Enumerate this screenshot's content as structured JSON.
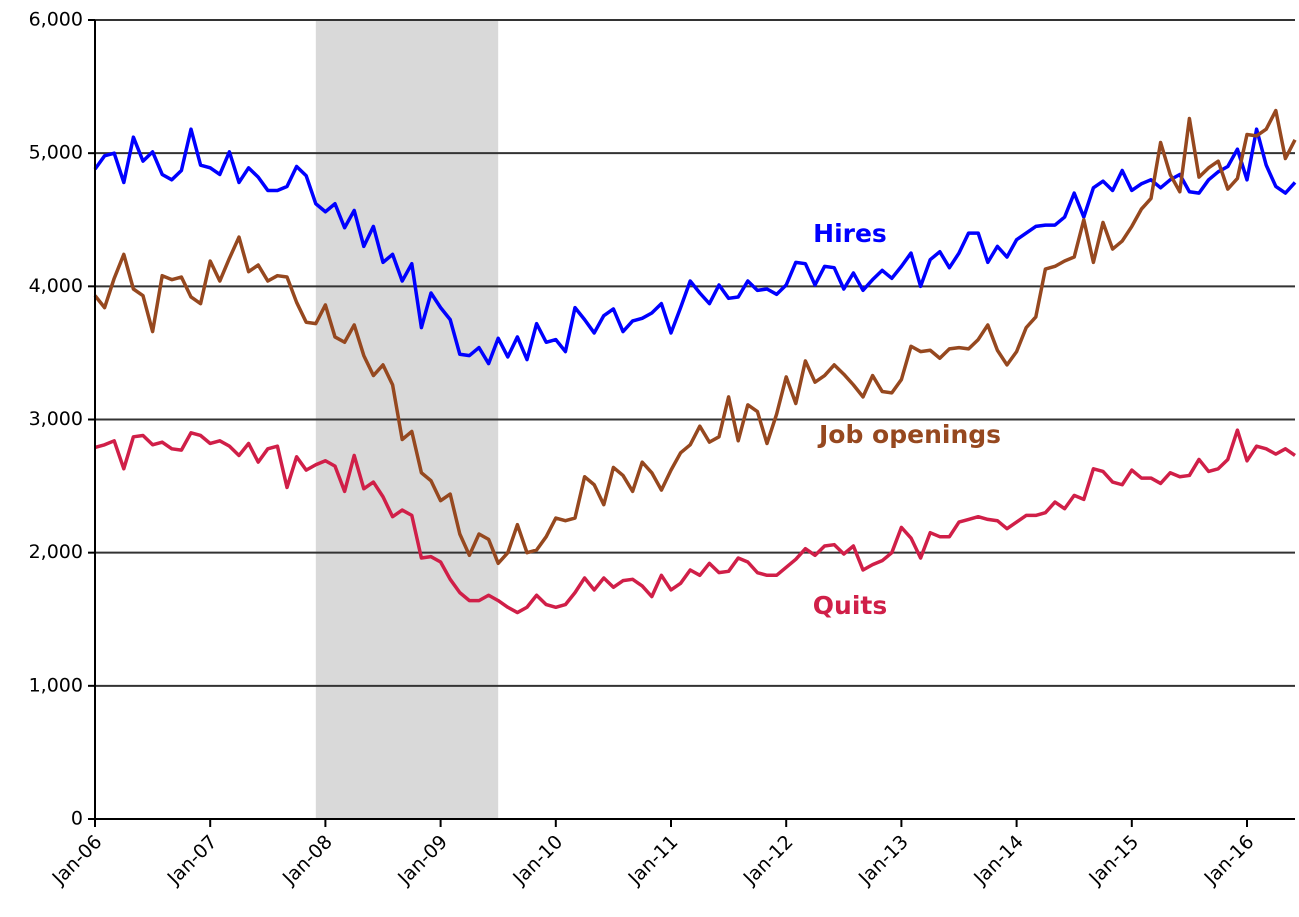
{
  "chart_data": {
    "type": "line",
    "categories": [
      "Jan-06",
      null,
      null,
      null,
      null,
      null,
      null,
      null,
      null,
      null,
      null,
      null,
      "Jan-07",
      null,
      null,
      null,
      null,
      null,
      null,
      null,
      null,
      null,
      null,
      null,
      "Jan-08",
      null,
      null,
      null,
      null,
      null,
      null,
      null,
      null,
      null,
      null,
      null,
      "Jan-09",
      null,
      null,
      null,
      null,
      null,
      null,
      null,
      null,
      null,
      null,
      null,
      "Jan-10",
      null,
      null,
      null,
      null,
      null,
      null,
      null,
      null,
      null,
      null,
      null,
      "Jan-11",
      null,
      null,
      null,
      null,
      null,
      null,
      null,
      null,
      null,
      null,
      null,
      "Jan-12",
      null,
      null,
      null,
      null,
      null,
      null,
      null,
      null,
      null,
      null,
      null,
      "Jan-13",
      null,
      null,
      null,
      null,
      null,
      null,
      null,
      null,
      null,
      null,
      null,
      "Jan-14",
      null,
      null,
      null,
      null,
      null,
      null,
      null,
      null,
      null,
      null,
      null,
      "Jan-15",
      null,
      null,
      null,
      null,
      null,
      null,
      null,
      null,
      null,
      null,
      null,
      "Jan-16",
      null,
      null,
      null,
      null,
      null
    ],
    "series": [
      {
        "name": "Hires",
        "color": "#0000ff",
        "values": [
          4880,
          4980,
          5000,
          4780,
          5120,
          4940,
          5010,
          4840,
          4800,
          4870,
          5180,
          4910,
          4890,
          4840,
          5010,
          4780,
          4890,
          4820,
          4720,
          4720,
          4750,
          4900,
          4830,
          4620,
          4560,
          4620,
          4440,
          4570,
          4300,
          4450,
          4180,
          4240,
          4040,
          4170,
          3690,
          3950,
          3840,
          3750,
          3490,
          3480,
          3540,
          3420,
          3610,
          3470,
          3620,
          3450,
          3720,
          3580,
          3600,
          3510,
          3840,
          3750,
          3650,
          3780,
          3830,
          3660,
          3740,
          3760,
          3800,
          3870,
          3650,
          3840,
          4040,
          3950,
          3870,
          4010,
          3910,
          3920,
          4040,
          3970,
          3980,
          3940,
          4010,
          4180,
          4170,
          4010,
          4150,
          4140,
          3980,
          4100,
          3970,
          4050,
          4120,
          4060,
          4150,
          4250,
          4000,
          4200,
          4260,
          4140,
          4250,
          4400,
          4400,
          4180,
          4300,
          4220,
          4350,
          4400,
          4450,
          4460,
          4460,
          4520,
          4700,
          4520,
          4740,
          4790,
          4720,
          4870,
          4720,
          4770,
          4800,
          4740,
          4800,
          4840,
          4710,
          4700,
          4800,
          4860,
          4900,
          5030,
          4800,
          5180,
          4910,
          4750,
          4700,
          4780
        ]
      },
      {
        "name": "Job openings",
        "color": "#96481f",
        "values": [
          3930,
          3840,
          4060,
          4240,
          3980,
          3930,
          3660,
          4080,
          4050,
          4070,
          3920,
          3870,
          4190,
          4040,
          4210,
          4370,
          4110,
          4160,
          4040,
          4080,
          4070,
          3880,
          3730,
          3720,
          3860,
          3620,
          3580,
          3710,
          3480,
          3330,
          3410,
          3260,
          2850,
          2910,
          2600,
          2540,
          2390,
          2440,
          2140,
          1980,
          2140,
          2100,
          1920,
          2000,
          2210,
          2000,
          2020,
          2120,
          2260,
          2240,
          2260,
          2570,
          2510,
          2360,
          2640,
          2580,
          2460,
          2680,
          2600,
          2470,
          2620,
          2750,
          2810,
          2950,
          2830,
          2870,
          3170,
          2840,
          3110,
          3060,
          2820,
          3040,
          3320,
          3120,
          3440,
          3280,
          3330,
          3410,
          3340,
          3260,
          3170,
          3330,
          3210,
          3200,
          3300,
          3550,
          3510,
          3520,
          3460,
          3530,
          3540,
          3530,
          3600,
          3710,
          3520,
          3410,
          3510,
          3690,
          3770,
          4130,
          4150,
          4190,
          4220,
          4500,
          4180,
          4480,
          4280,
          4340,
          4450,
          4580,
          4660,
          5080,
          4840,
          4710,
          5260,
          4820,
          4890,
          4940,
          4730,
          4810,
          5140,
          5130,
          5180,
          5320,
          4960,
          5100
        ]
      },
      {
        "name": "Quits",
        "color": "#d01f48",
        "values": [
          2790,
          2810,
          2840,
          2630,
          2870,
          2880,
          2810,
          2830,
          2780,
          2770,
          2900,
          2880,
          2820,
          2840,
          2800,
          2730,
          2820,
          2680,
          2780,
          2800,
          2490,
          2720,
          2620,
          2660,
          2690,
          2650,
          2460,
          2730,
          2480,
          2530,
          2420,
          2270,
          2320,
          2280,
          1960,
          1970,
          1930,
          1800,
          1700,
          1640,
          1640,
          1680,
          1640,
          1590,
          1550,
          1590,
          1680,
          1610,
          1590,
          1610,
          1700,
          1810,
          1720,
          1810,
          1740,
          1790,
          1800,
          1750,
          1670,
          1830,
          1720,
          1770,
          1870,
          1830,
          1920,
          1850,
          1860,
          1960,
          1930,
          1850,
          1830,
          1830,
          1890,
          1950,
          2030,
          1980,
          2050,
          2060,
          1990,
          2050,
          1870,
          1910,
          1940,
          2000,
          2190,
          2110,
          1960,
          2150,
          2120,
          2120,
          2230,
          2250,
          2270,
          2250,
          2240,
          2180,
          2230,
          2280,
          2280,
          2300,
          2380,
          2330,
          2430,
          2400,
          2630,
          2610,
          2530,
          2510,
          2620,
          2560,
          2560,
          2520,
          2600,
          2570,
          2580,
          2700,
          2610,
          2630,
          2700,
          2920,
          2690,
          2800,
          2780,
          2740,
          2780,
          2730
        ]
      }
    ],
    "recession_months": [
      23,
      42
    ],
    "ylim": [
      0,
      6000
    ],
    "yticks": [
      0,
      {
        "value": 1000,
        "label": "1,000"
      },
      {
        "value": 2000,
        "label": "2,000"
      },
      {
        "value": 3000,
        "label": "3,000"
      },
      {
        "value": 4000,
        "label": "4,000"
      },
      {
        "value": 5000,
        "label": "5,000"
      },
      {
        "value": 6000,
        "label": "6,000"
      }
    ],
    "grid": true
  }
}
